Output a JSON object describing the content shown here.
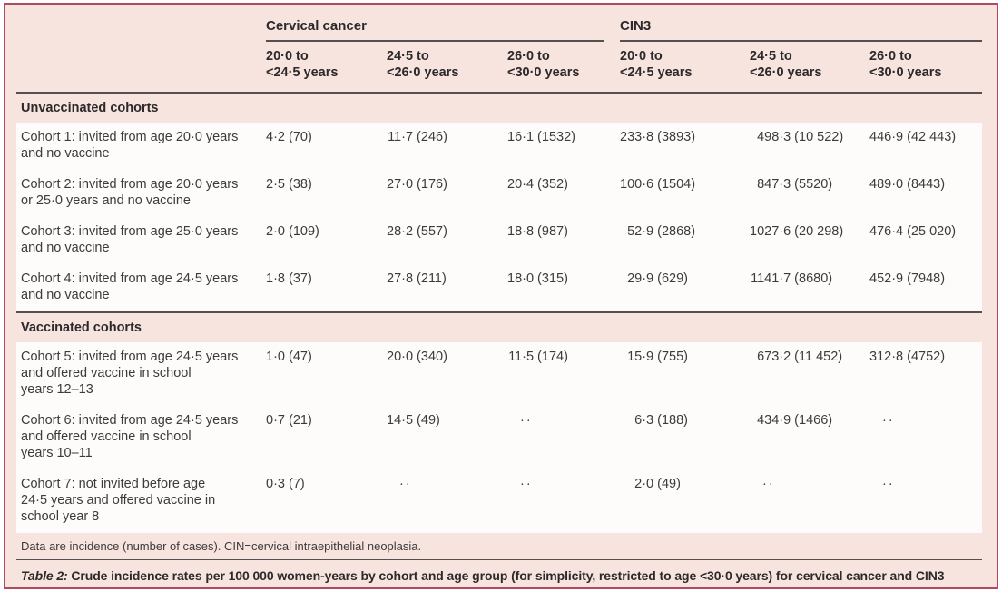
{
  "colors": {
    "frame": "#b04a60",
    "background": "#f8e4df",
    "row": "#fdfcfa",
    "rule": "#55504f",
    "text": "#3e3a3b"
  },
  "table": {
    "groups": [
      {
        "label": "Cervical cancer"
      },
      {
        "label": "CIN3"
      }
    ],
    "age_columns": [
      "20·0 to\n<24·5 years",
      "24·5 to\n<26·0 years",
      "26·0 to\n<30·0 years",
      "20·0 to\n<24·5 years",
      "24·5 to\n<26·0 years",
      "26·0 to\n<30·0 years"
    ],
    "missing_marker": "··",
    "sections": [
      {
        "title": "Unvaccinated cohorts",
        "rows": [
          {
            "label": "Cohort 1: invited from age 20·0 years\nand no vaccine",
            "values": [
              "4·2 (70)",
              "11·7 (246)",
              "16·1 (1532)",
              "233·8 (3893)",
              "498·3 (10 522)",
              "446·9 (42 443)"
            ]
          },
          {
            "label": "Cohort 2: invited from age 20·0 years\nor 25·0 years and no vaccine",
            "values": [
              "2·5 (38)",
              "27·0 (176)",
              "20·4 (352)",
              "100·6 (1504)",
              "847·3 (5520)",
              "489·0 (8443)"
            ]
          },
          {
            "label": "Cohort 3: invited from age 25·0 years\nand no vaccine",
            "values": [
              "2·0 (109)",
              "28·2 (557)",
              "18·8 (987)",
              "52·9 (2868)",
              "1027·6 (20 298)",
              "476·4 (25 020)"
            ]
          },
          {
            "label": "Cohort 4: invited from age 24·5 years\nand no vaccine",
            "values": [
              "1·8 (37)",
              "27·8 (211)",
              "18·0 (315)",
              "29·9 (629)",
              "1141·7 (8680)",
              "452·9 (7948)"
            ]
          }
        ]
      },
      {
        "title": "Vaccinated cohorts",
        "rows": [
          {
            "label": "Cohort 5: invited from age 24·5 years\nand offered vaccine in school\nyears 12–13",
            "values": [
              "1·0 (47)",
              "20·0 (340)",
              "11·5 (174)",
              "15·9 (755)",
              "673·2 (11 452)",
              "312·8 (4752)"
            ]
          },
          {
            "label": "Cohort 6: invited from age 24·5 years\nand offered vaccine in school\nyears 10–11",
            "values": [
              "0·7 (21)",
              "14·5 (49)",
              "··",
              "6·3 (188)",
              "434·9 (1466)",
              "··"
            ]
          },
          {
            "label": "Cohort 7: not invited before age\n24·5 years and offered vaccine in\nschool year 8",
            "values": [
              "0·3 (7)",
              "··",
              "··",
              "2·0 (49)",
              "··",
              "··"
            ]
          }
        ]
      }
    ]
  },
  "footnote": "Data are incidence (number of cases). CIN=cervical intraepithelial neoplasia.",
  "caption": {
    "label": "Table 2:",
    "text": " Crude incidence rates per 100 000 women-years by cohort and age group (for simplicity, restricted to age <30·0 years) for cervical cancer and CIN3"
  }
}
